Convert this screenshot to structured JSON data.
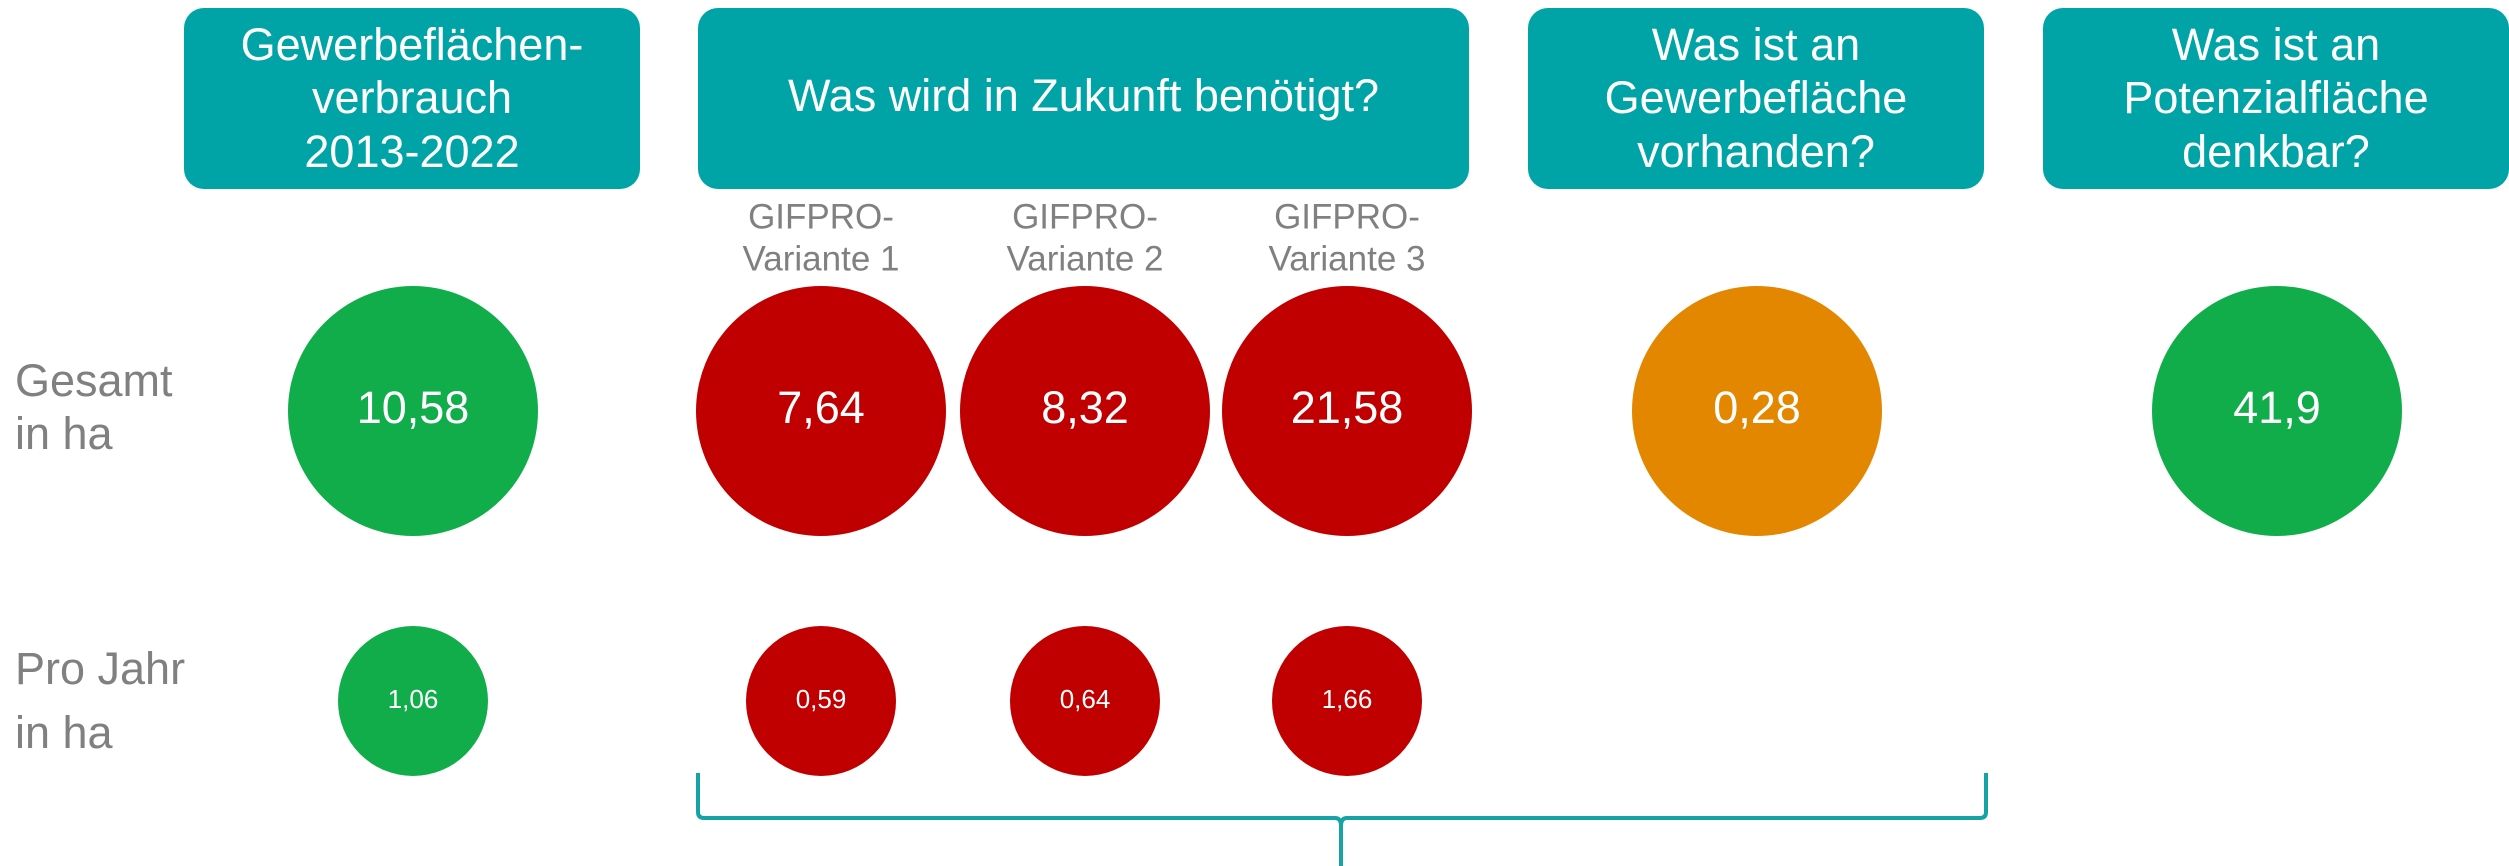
{
  "headers": [
    {
      "lines": [
        "Gewerbeflächen-",
        "verbrauch",
        "2013-2022"
      ]
    },
    {
      "lines": [
        "Was wird in Zukunft benötigt?"
      ]
    },
    {
      "lines": [
        "Was ist an",
        "Gewerbefläche",
        "vorhanden?"
      ]
    },
    {
      "lines": [
        "Was ist an",
        "Potenzialfläche",
        "denkbar?"
      ]
    }
  ],
  "variants": [
    [
      "GIFPRO-",
      "Variante 1"
    ],
    [
      "GIFPRO-",
      "Variante 2"
    ],
    [
      "GIFPRO-",
      "Variante 3"
    ]
  ],
  "rows": [
    {
      "label": [
        "Gesamt",
        "in ha"
      ],
      "values": [
        "10,58",
        "7,64",
        "8,32",
        "21,58",
        "0,28",
        "41,9"
      ]
    },
    {
      "label": [
        "Pro Jahr",
        "in ha"
      ],
      "values": [
        "1,06",
        "0,59",
        "0,64",
        "1,66"
      ]
    }
  ]
}
